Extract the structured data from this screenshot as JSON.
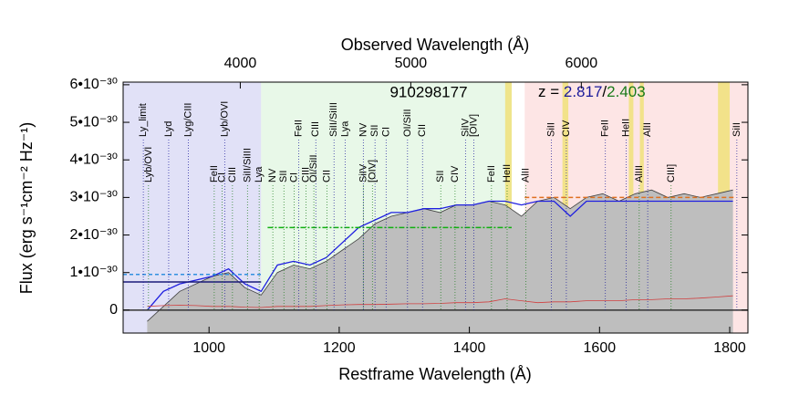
{
  "chart_data": {
    "type": "line",
    "title": "910298177",
    "redshift": {
      "prefix": "z = ",
      "z1": 2.817,
      "separator": "/",
      "z2": 2.403,
      "z1_color": "#1a1a9a",
      "z2_color": "#1a7a1a"
    },
    "xlabel": "Restframe Wavelength (Å)",
    "x2label": "Observed Wavelength (Å)",
    "ylabel": "Flux (erg s⁻¹cm⁻² Hz⁻¹)",
    "xlim": [
      868,
      1828
    ],
    "xticks": [
      1000,
      1200,
      1400,
      1600,
      1800
    ],
    "x2lim": [
      3313,
      6977
    ],
    "x2ticks": [
      4000,
      5000,
      6000
    ],
    "ylim": [
      -6.1e-31,
      6.07e-30
    ],
    "yticks": [
      0,
      {
        "value": 1e-30,
        "label": "1•10⁻³⁰"
      },
      {
        "value": 2e-30,
        "label": "2•10⁻³⁰"
      },
      {
        "value": 3e-30,
        "label": "3•10⁻³⁰"
      },
      {
        "value": 4e-30,
        "label": "4•10⁻³⁰"
      },
      {
        "value": 5e-30,
        "label": "5•10⁻³⁰"
      },
      {
        "value": 6e-30,
        "label": "6•10⁻³⁰"
      }
    ],
    "regions": [
      {
        "x": [
          868,
          1080
        ],
        "color": "#dcdcf6"
      },
      {
        "x": [
          1080,
          1465
        ],
        "color": "#e4f7e4"
      },
      {
        "x": [
          1485,
          1828
        ],
        "color": "#fde0e0"
      },
      {
        "x": [
          1455,
          1465
        ],
        "color": "#f0e27a"
      },
      {
        "x": [
          1543,
          1552
        ],
        "color": "#f0e27a"
      },
      {
        "x": [
          1645,
          1652
        ],
        "color": "#f0e27a"
      },
      {
        "x": [
          1662,
          1668
        ],
        "color": "#f0e27a"
      },
      {
        "x": [
          1782,
          1800
        ],
        "color": "#f0e27a"
      }
    ],
    "x": [
      905,
      930,
      955,
      980,
      1005,
      1030,
      1055,
      1080,
      1105,
      1130,
      1155,
      1180,
      1205,
      1230,
      1255,
      1280,
      1305,
      1330,
      1355,
      1380,
      1405,
      1430,
      1455,
      1480,
      1505,
      1530,
      1555,
      1580,
      1605,
      1630,
      1655,
      1680,
      1705,
      1730,
      1755,
      1780,
      1805
    ],
    "series": [
      {
        "color": "#404040",
        "fill": "#bebebe",
        "values": [
          -3e-31,
          1e-31,
          5e-31,
          7e-31,
          9e-31,
          1e-30,
          6e-31,
          4e-31,
          1e-30,
          1.2e-30,
          1.1e-30,
          1.3e-30,
          1.6e-30,
          1.9e-30,
          2.3e-30,
          2.5e-30,
          2.6e-30,
          2.7e-30,
          2.6e-30,
          2.8e-30,
          2.8e-30,
          2.9e-30,
          2.8e-30,
          2.5e-30,
          2.9e-30,
          3e-30,
          2.7e-30,
          3e-30,
          3.1e-30,
          2.9e-30,
          3.1e-30,
          3.2e-30,
          3e-30,
          3.1e-30,
          3e-30,
          3.1e-30,
          3.2e-30
        ]
      },
      {
        "color": "#1f1fe0",
        "values": [
          0,
          5e-31,
          7e-31,
          8e-31,
          9e-31,
          1.1e-30,
          7e-31,
          5e-31,
          1.2e-30,
          1.3e-30,
          1.2e-30,
          1.4e-30,
          1.8e-30,
          2.2e-30,
          2.4e-30,
          2.6e-30,
          2.6e-30,
          2.7e-30,
          2.7e-30,
          2.8e-30,
          2.8e-30,
          2.9e-30,
          2.9e-30,
          2.8e-30,
          2.9e-30,
          2.9e-30,
          2.5e-30,
          2.9e-30,
          2.9e-30,
          2.9e-30,
          2.9e-30,
          2.9e-30,
          2.9e-30,
          2.9e-30,
          2.9e-30,
          2.9e-30,
          2.9e-30
        ]
      },
      {
        "color": "#d04040",
        "values": [
          1e-31,
          1.2e-31,
          1.3e-31,
          1.2e-31,
          1e-31,
          1e-31,
          8e-32,
          7e-32,
          1e-31,
          1e-31,
          1e-31,
          1.2e-31,
          1.4e-31,
          1.5e-31,
          1.5e-31,
          1.6e-31,
          1.7e-31,
          1.7e-31,
          1.8e-31,
          2e-31,
          2e-31,
          2.2e-31,
          3e-31,
          2.5e-31,
          2e-31,
          2.2e-31,
          2.2e-31,
          2.5e-31,
          2.5e-31,
          2.5e-31,
          2.8e-31,
          2.8e-31,
          3e-31,
          3e-31,
          3.2e-31,
          3.5e-31,
          3.8e-31
        ]
      }
    ],
    "levels": [
      {
        "x": [
          868,
          1080
        ],
        "y": 9.5e-31,
        "color": "#3090e0",
        "dash": "4,3"
      },
      {
        "x": [
          868,
          1080
        ],
        "y": 7.5e-31,
        "color": "#1a1a7a",
        "dash": "none"
      },
      {
        "x": [
          1090,
          1465
        ],
        "y": 2.2e-30,
        "color": "#10b010",
        "dash": "6,2,2,2"
      },
      {
        "x": [
          1485,
          1810
        ],
        "y": 3e-30,
        "color": "#e07020",
        "dash": "5,3"
      }
    ],
    "lines": [
      {
        "color": "#1a1a9a",
        "row": "top",
        "items": [
          {
            "name": "Ly_limit",
            "x": 899
          },
          {
            "name": "Lyd",
            "x": 938
          },
          {
            "name": "Lyg/CIII",
            "x": 968
          },
          {
            "name": "Lyb/OVI",
            "x": 1024
          },
          {
            "name": "FeII",
            "x": 1138
          },
          {
            "name": "CIII",
            "x": 1164
          },
          {
            "name": "SiII/SiIII",
            "x": 1192
          },
          {
            "name": "Lya",
            "x": 1209
          },
          {
            "name": "NV",
            "x": 1237
          },
          {
            "name": "SII",
            "x": 1255
          },
          {
            "name": "CI",
            "x": 1272
          },
          {
            "name": "OI/SiII",
            "x": 1305
          },
          {
            "name": "CII",
            "x": 1328
          },
          {
            "name": "SiIV",
            "x": 1394
          },
          {
            "name": "[OIV]",
            "x": 1407
          },
          {
            "name": "SiII",
            "x": 1526
          },
          {
            "name": "CIV",
            "x": 1549
          },
          {
            "name": "FeII",
            "x": 1609
          },
          {
            "name": "HeII",
            "x": 1641
          },
          {
            "name": "AlII",
            "x": 1674
          },
          {
            "name": "SiII",
            "x": 1811
          }
        ]
      },
      {
        "color": "#1a7a1a",
        "row": "bottom",
        "items": [
          {
            "name": "Lyb/OVI",
            "x": 907
          },
          {
            "name": "FeII",
            "x": 1008
          },
          {
            "name": "CI",
            "x": 1020
          },
          {
            "name": "CIII",
            "x": 1036
          },
          {
            "name": "SiII/SiIII",
            "x": 1059
          },
          {
            "name": "Lya",
            "x": 1077
          },
          {
            "name": "NV",
            "x": 1098
          },
          {
            "name": "SII",
            "x": 1115
          },
          {
            "name": "CI",
            "x": 1131
          },
          {
            "name": "CIII",
            "x": 1149
          },
          {
            "name": "OI/SiII",
            "x": 1161
          },
          {
            "name": "CII",
            "x": 1181
          },
          {
            "name": "SiIV",
            "x": 1237
          },
          {
            "name": "[OIV]",
            "x": 1251
          },
          {
            "name": "SII",
            "x": 1356
          },
          {
            "name": "CIV",
            "x": 1378
          },
          {
            "name": "FeII",
            "x": 1434
          },
          {
            "name": "HeII",
            "x": 1458
          },
          {
            "name": "AlII",
            "x": 1487
          },
          {
            "name": "AlIII",
            "x": 1661
          },
          {
            "name": "CIII]",
            "x": 1710
          }
        ]
      }
    ]
  }
}
